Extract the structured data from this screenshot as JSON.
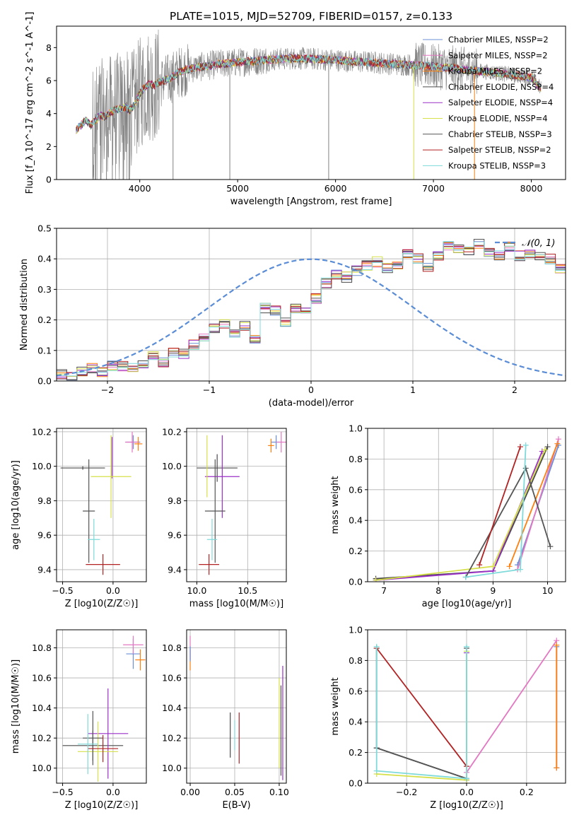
{
  "title": "PLATE=1015, MJD=52709, FIBERID=0157, z=0.133",
  "colors": {
    "Chabrier MILES": "#6b8fd6",
    "Salpeter MILES": "#e377c2",
    "Kroupa MILES": "#ff7f0e",
    "Chabrier ELODIE": "#4a4a4a",
    "Salpeter ELODIE": "#9b30c8",
    "Kroupa ELODIE": "#d6e04a",
    "Chabrier STELIB": "#555555",
    "Salpeter STELIB": "#b22222",
    "Kroupa STELIB": "#7fdada",
    "data": "#808080",
    "gaussian": "#5a8dd6"
  },
  "chart_data": [
    {
      "id": "spectrum",
      "type": "line",
      "title": "PLATE=1015, MJD=52709, FIBERID=0157, z=0.133",
      "xlabel": "wavelength [Angstrom, rest frame]",
      "ylabel": "Flux [f_λ 10^-17 erg cm^-2 s^-1 A^-1]",
      "xlim": [
        3150,
        8350
      ],
      "ylim": [
        0,
        9.3
      ],
      "xticks": [
        "4000",
        "5000",
        "6000",
        "7000",
        "8000"
      ],
      "yticks": [
        "0",
        "2",
        "4",
        "6",
        "8"
      ],
      "legend_position": "top-right",
      "grid": false,
      "legend": [
        "Chabrier MILES, N_SSP=2",
        "Salpeter MILES, N_SSP=2",
        "Kroupa MILES, N_SSP=2",
        "Chabrier ELODIE, N_SSP=4",
        "Salpeter ELODIE, N_SSP=4",
        "Kroupa ELODIE, N_SSP=4",
        "Chabrier STELIB, N_SSP=3",
        "Salpeter STELIB, N_SSP=2",
        "Kroupa STELIB, N_SSP=3"
      ],
      "model_continuum": {
        "x": [
          3350,
          3400,
          3450,
          3500,
          3550,
          3600,
          3650,
          3700,
          3750,
          3800,
          3850,
          3900,
          3950,
          4000,
          4050,
          4100,
          4150,
          4200,
          4300,
          4400,
          4500,
          4600,
          4800,
          5000,
          5200,
          5400,
          5600,
          5800,
          6000,
          6200,
          6400,
          6600,
          6800,
          7000,
          7200,
          7400,
          7600,
          7800,
          8000,
          8100
        ],
        "y": [
          3.0,
          3.3,
          3.6,
          3.3,
          3.6,
          3.9,
          3.8,
          4.1,
          4.2,
          4.3,
          4.4,
          4.2,
          4.6,
          5.2,
          5.6,
          5.8,
          5.7,
          5.9,
          6.1,
          6.5,
          6.7,
          6.8,
          7.0,
          7.1,
          7.2,
          7.3,
          7.35,
          7.3,
          7.25,
          7.15,
          7.1,
          7.0,
          6.95,
          6.85,
          6.75,
          6.6,
          6.5,
          6.35,
          6.2,
          5.5
        ]
      },
      "data_noise_description_free": true
    },
    {
      "id": "residual_hist",
      "type": "bar",
      "xlabel": "(data-model)/error",
      "ylabel": "Normed distribution",
      "xlim": [
        -2.5,
        2.5
      ],
      "ylim": [
        0,
        0.5
      ],
      "xticks": [
        "−2",
        "−1",
        "0",
        "1",
        "2"
      ],
      "yticks": [
        "0.0",
        "0.1",
        "0.2",
        "0.3",
        "0.4",
        "0.5"
      ],
      "grid": true,
      "legend": [
        "𝒩(0, 1)"
      ],
      "legend_position": "top-right",
      "bin_width": 0.1,
      "bin_start": -2.5,
      "values": [
        0.02,
        0.02,
        0.03,
        0.04,
        0.03,
        0.05,
        0.05,
        0.04,
        0.06,
        0.08,
        0.06,
        0.09,
        0.09,
        0.12,
        0.14,
        0.17,
        0.19,
        0.16,
        0.18,
        0.14,
        0.24,
        0.23,
        0.19,
        0.24,
        0.23,
        0.27,
        0.32,
        0.35,
        0.34,
        0.36,
        0.38,
        0.39,
        0.37,
        0.38,
        0.42,
        0.4,
        0.37,
        0.41,
        0.44,
        0.43,
        0.43,
        0.45,
        0.42,
        0.41,
        0.44,
        0.41,
        0.42,
        0.41,
        0.4,
        0.37,
        0.35,
        0.33,
        0.3,
        0.31,
        0.28,
        0.29,
        0.29,
        0.33,
        0.26,
        0.23,
        0.21,
        0.19,
        0.19,
        0.14,
        0.16,
        0.14,
        0.11,
        0.13,
        0.11,
        0.09,
        0.08,
        0.09,
        0.08,
        0.06,
        0.06,
        0.04,
        0.04,
        0.04,
        0.03,
        0.03
      ]
    },
    {
      "id": "age_vs_Z",
      "type": "scatter",
      "xlabel": "Z [log10(Z/Z☉)]",
      "ylabel": "age  [log10(age/yr)]",
      "xlim": [
        -0.56,
        0.33
      ],
      "ylim": [
        9.33,
        10.22
      ],
      "xticks": [
        "−0.5",
        "0.0"
      ],
      "yticks": [
        "9.4",
        "9.6",
        "9.8",
        "10.0",
        "10.2"
      ],
      "grid": true,
      "errorbars": [
        {
          "model": "Chabrier MILES",
          "x": 0.2,
          "xerr": 0.07,
          "y": 10.14,
          "yerr": 0.04
        },
        {
          "model": "Salpeter MILES",
          "x": 0.19,
          "xerr": 0.07,
          "y": 10.14,
          "yerr": 0.06
        },
        {
          "model": "Kroupa MILES",
          "x": 0.25,
          "xerr": 0.04,
          "y": 10.13,
          "yerr": 0.04
        },
        {
          "model": "Chabrier ELODIE",
          "x": -0.3,
          "xerr": 0.22,
          "y": 9.99,
          "yerr": 0.01
        },
        {
          "model": "Salpeter ELODIE",
          "x": -0.01,
          "xerr": 0.0,
          "y": 10.05,
          "yerr": 0.12
        },
        {
          "model": "Kroupa ELODIE",
          "x": -0.02,
          "xerr": 0.2,
          "y": 9.94,
          "yerr": 0.24
        },
        {
          "model": "Chabrier STELIB",
          "x": -0.24,
          "xerr": 0.06,
          "y": 9.74,
          "yerr": 0.3
        },
        {
          "model": "Salpeter STELIB",
          "x": -0.1,
          "xerr": 0.17,
          "y": 9.43,
          "yerr": 0.06
        },
        {
          "model": "Kroupa STELIB",
          "x": -0.19,
          "xerr": 0.06,
          "y": 9.575,
          "yerr": 0.12
        }
      ]
    },
    {
      "id": "age_vs_mass",
      "type": "scatter",
      "xlabel": "mass [log10(M/M☉)]",
      "ylabel": "",
      "xlim": [
        9.9,
        10.88
      ],
      "ylim": [
        9.33,
        10.22
      ],
      "xticks": [
        "10.0",
        "10.5"
      ],
      "yticks": [
        "9.4",
        "9.6",
        "9.8",
        "10.0",
        "10.2"
      ],
      "grid": true,
      "errorbars": [
        {
          "model": "Chabrier MILES",
          "x": 10.78,
          "xerr": 0.05,
          "y": 10.14,
          "yerr": 0.04
        },
        {
          "model": "Salpeter MILES",
          "x": 10.83,
          "xerr": 0.05,
          "y": 10.14,
          "yerr": 0.06
        },
        {
          "model": "Kroupa MILES",
          "x": 10.73,
          "xerr": 0.03,
          "y": 10.12,
          "yerr": 0.04
        },
        {
          "model": "Chabrier ELODIE",
          "x": 10.2,
          "xerr": 0.2,
          "y": 9.99,
          "yerr": 0.08
        },
        {
          "model": "Salpeter ELODIE",
          "x": 10.25,
          "xerr": 0.17,
          "y": 9.94,
          "yerr": 0.24
        },
        {
          "model": "Kroupa ELODIE",
          "x": 10.1,
          "xerr": 0.0,
          "y": 10.0,
          "yerr": 0.18
        },
        {
          "model": "Chabrier STELIB",
          "x": 10.18,
          "xerr": 0.1,
          "y": 9.74,
          "yerr": 0.3
        },
        {
          "model": "Salpeter STELIB",
          "x": 10.12,
          "xerr": 0.1,
          "y": 9.43,
          "yerr": 0.06
        },
        {
          "model": "Kroupa STELIB",
          "x": 10.15,
          "xerr": 0.05,
          "y": 9.575,
          "yerr": 0.12
        }
      ]
    },
    {
      "id": "massweight_vs_age",
      "type": "line",
      "xlabel": "age  [log10(age/yr)]",
      "ylabel": "mass weight",
      "xlim": [
        6.7,
        10.33
      ],
      "ylim": [
        0,
        1
      ],
      "xticks": [
        "7",
        "8",
        "9",
        "10"
      ],
      "yticks": [
        "0.0",
        "0.2",
        "0.4",
        "0.6",
        "0.8",
        "1.0"
      ],
      "grid": true,
      "series": [
        {
          "name": "Chabrier MILES",
          "x": [
            9.45,
            10.2
          ],
          "y": [
            0.11,
            0.89
          ]
        },
        {
          "name": "Salpeter MILES",
          "x": [
            9.45,
            10.2
          ],
          "y": [
            0.08,
            0.93
          ]
        },
        {
          "name": "Kroupa MILES",
          "x": [
            9.3,
            10.18
          ],
          "y": [
            0.1,
            0.9
          ]
        },
        {
          "name": "Chabrier ELODIE",
          "x": [
            6.85,
            9.0,
            10.0
          ],
          "y": [
            0.02,
            0.07,
            0.88
          ]
        },
        {
          "name": "Salpeter ELODIE",
          "x": [
            6.85,
            9.0,
            9.9
          ],
          "y": [
            0.01,
            0.07,
            0.85
          ]
        },
        {
          "name": "Kroupa ELODIE",
          "x": [
            6.85,
            9.0,
            9.95
          ],
          "y": [
            0.01,
            0.1,
            0.86
          ]
        },
        {
          "name": "Chabrier STELIB",
          "x": [
            8.5,
            9.6,
            10.05
          ],
          "y": [
            0.03,
            0.74,
            0.23
          ]
        },
        {
          "name": "Salpeter STELIB",
          "x": [
            8.75,
            9.5
          ],
          "y": [
            0.11,
            0.88
          ]
        },
        {
          "name": "Kroupa STELIB",
          "x": [
            8.5,
            9.5,
            9.6
          ],
          "y": [
            0.03,
            0.08,
            0.89
          ]
        }
      ]
    },
    {
      "id": "mass_vs_Z",
      "type": "scatter",
      "xlabel": "Z [log10(Z/Z☉)]",
      "ylabel": "mass [log10(M/M☉)]",
      "xlim": [
        -0.56,
        0.33
      ],
      "ylim": [
        9.9,
        10.92
      ],
      "xticks": [
        "−0.5",
        "0.0"
      ],
      "yticks": [
        "10.0",
        "10.2",
        "10.4",
        "10.6",
        "10.8"
      ],
      "grid": true,
      "errorbars": [
        {
          "model": "Chabrier MILES",
          "x": 0.2,
          "xerr": 0.07,
          "y": 10.76,
          "yerr": 0.1
        },
        {
          "model": "Salpeter MILES",
          "x": 0.2,
          "xerr": 0.1,
          "y": 10.82,
          "yerr": 0.06
        },
        {
          "model": "Kroupa MILES",
          "x": 0.27,
          "xerr": 0.05,
          "y": 10.72,
          "yerr": 0.07
        },
        {
          "model": "Chabrier ELODIE",
          "x": -0.2,
          "xerr": 0.3,
          "y": 10.15,
          "yerr": 0.1
        },
        {
          "model": "Salpeter ELODIE",
          "x": -0.05,
          "xerr": 0.2,
          "y": 10.23,
          "yerr": 0.3
        },
        {
          "model": "Kroupa ELODIE",
          "x": -0.15,
          "xerr": 0.2,
          "y": 10.11,
          "yerr": 0.2
        },
        {
          "model": "Chabrier STELIB",
          "x": -0.2,
          "xerr": 0.1,
          "y": 10.2,
          "yerr": 0.18
        },
        {
          "model": "Salpeter STELIB",
          "x": -0.1,
          "xerr": 0.15,
          "y": 10.13,
          "yerr": 0.09
        },
        {
          "model": "Kroupa STELIB",
          "x": -0.25,
          "xerr": 0.1,
          "y": 10.16,
          "yerr": 0.2
        }
      ]
    },
    {
      "id": "mass_vs_EBV",
      "type": "scatter",
      "xlabel": "E(B-V)",
      "ylabel": "",
      "xlim": [
        -0.004,
        0.108
      ],
      "ylim": [
        9.9,
        10.92
      ],
      "xticks": [
        "0.00",
        "0.05",
        "0.10"
      ],
      "yticks": [
        "10.0",
        "10.2",
        "10.4",
        "10.6",
        "10.8"
      ],
      "grid": true,
      "errorbars": [
        {
          "model": "Salpeter MILES",
          "x": 0.0,
          "xerr": 0,
          "y": 10.8,
          "yerr": 0.08
        },
        {
          "model": "Kroupa MILES",
          "x": 0.0,
          "xerr": 0,
          "y": 10.72,
          "yerr": 0.07
        },
        {
          "model": "Chabrier MILES",
          "x": 0.0,
          "xerr": 0,
          "y": 10.76,
          "yerr": 0.05
        },
        {
          "model": "Chabrier ELODIE",
          "x": 0.045,
          "xerr": 0,
          "y": 10.22,
          "yerr": 0.15
        },
        {
          "model": "Salpeter STELIB",
          "x": 0.055,
          "xerr": 0,
          "y": 10.2,
          "yerr": 0.17
        },
        {
          "model": "Kroupa STELIB",
          "x": 0.05,
          "xerr": 0,
          "y": 10.22,
          "yerr": 0.1
        },
        {
          "model": "Salpeter ELODIE",
          "x": 0.104,
          "xerr": 0,
          "y": 10.3,
          "yerr": 0.38
        },
        {
          "model": "Kroupa ELODIE",
          "x": 0.1,
          "xerr": 0,
          "y": 10.3,
          "yerr": 0.3
        },
        {
          "model": "Chabrier STELIB",
          "x": 0.102,
          "xerr": 0,
          "y": 10.25,
          "yerr": 0.3
        }
      ]
    },
    {
      "id": "massweight_vs_Z",
      "type": "line",
      "xlabel": "Z [log10(Z/Z☉)]",
      "ylabel": "mass weight",
      "xlim": [
        -0.33,
        0.33
      ],
      "ylim": [
        0,
        1
      ],
      "xticks": [
        "−0.2",
        "0.0",
        "0.2"
      ],
      "yticks": [
        "0.0",
        "0.2",
        "0.4",
        "0.6",
        "0.8",
        "1.0"
      ],
      "grid": true,
      "series": [
        {
          "name": "Chabrier MILES",
          "x": [
            0.3,
            0.3
          ],
          "y": [
            0.1,
            0.89
          ]
        },
        {
          "name": "Salpeter MILES",
          "x": [
            0.0,
            0.3
          ],
          "y": [
            0.07,
            0.93
          ]
        },
        {
          "name": "Kroupa MILES",
          "x": [
            0.3,
            0.3
          ],
          "y": [
            0.1,
            0.9
          ]
        },
        {
          "name": "Chabrier ELODIE",
          "x": [
            -0.3,
            -0.3,
            0.0,
            0.0
          ],
          "y": [
            0.88,
            0.23,
            0.03,
            0.88
          ]
        },
        {
          "name": "Salpeter ELODIE",
          "x": [
            0.0,
            0.0
          ],
          "y": [
            0.02,
            0.85
          ]
        },
        {
          "name": "Kroupa ELODIE",
          "x": [
            -0.3,
            0.0,
            0.0
          ],
          "y": [
            0.06,
            0.02,
            0.86
          ]
        },
        {
          "name": "Chabrier STELIB",
          "x": [
            -0.3,
            0.0
          ],
          "y": [
            0.23,
            0.03
          ]
        },
        {
          "name": "Salpeter STELIB",
          "x": [
            -0.3,
            0.0
          ],
          "y": [
            0.88,
            0.11
          ]
        },
        {
          "name": "Kroupa STELIB",
          "x": [
            -0.3,
            -0.3,
            0.0,
            0.0
          ],
          "y": [
            0.89,
            0.08,
            0.03,
            0.89
          ]
        }
      ]
    }
  ]
}
